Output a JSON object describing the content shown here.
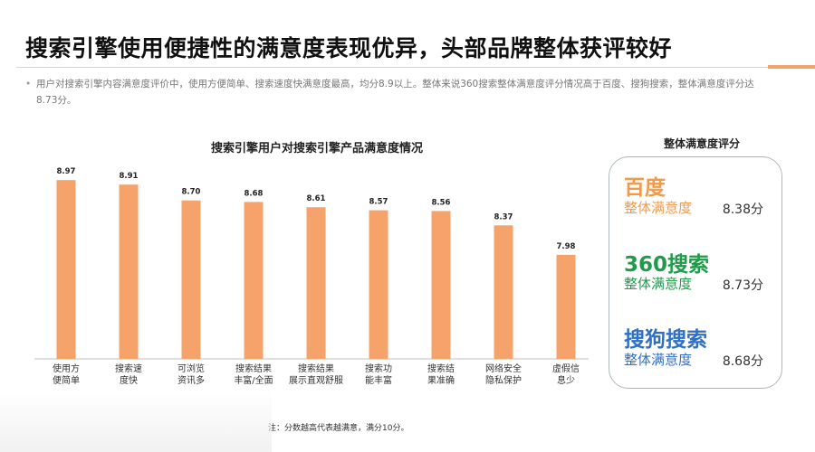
{
  "header": {
    "title": "搜索引擎使用便捷性的满意度表现优异，头部品牌整体获评较好",
    "summary": "用户对搜索引擎内容满意度评价中，使用方便简单、搜索速度快满意度最高，均分8.9以上。整体来说360搜索整体满意度评分情况高于百度、搜狗搜索，整体满意度评分达8.73分。"
  },
  "chart_data": {
    "type": "bar",
    "title": "搜索引擎用户对搜索引擎产品满意度情况",
    "categories": [
      "使用方便简单",
      "搜索速度快",
      "可浏览资讯多",
      "搜索结果丰富/全面",
      "搜索结果展示直观舒服",
      "搜索功能丰富",
      "搜索结果准确",
      "网络安全隐私保护",
      "虚假信息少"
    ],
    "category_lines": [
      [
        "使用方",
        "便简单"
      ],
      [
        "搜索速",
        "度快"
      ],
      [
        "可浏览",
        "资讯多"
      ],
      [
        "搜索结果",
        "丰富/全面"
      ],
      [
        "搜索结果",
        "展示直观舒服"
      ],
      [
        "搜索功",
        "能丰富"
      ],
      [
        "搜索结",
        "果准确"
      ],
      [
        "网络安全",
        "隐私保护"
      ],
      [
        "虚假信",
        "息少"
      ]
    ],
    "values": [
      8.97,
      8.91,
      8.7,
      8.68,
      8.61,
      8.57,
      8.56,
      8.37,
      7.98
    ],
    "value_labels": [
      "8.97",
      "8.91",
      "8.70",
      "8.68",
      "8.61",
      "8.57",
      "8.56",
      "8.37",
      "7.98"
    ],
    "ylim": [
      6.6,
      9.2
    ],
    "bar_color": "#f5a36a",
    "grid": false,
    "note": "注：分数越高代表越满意，满分10分。"
  },
  "panel": {
    "title": "整体满意度评分",
    "brands": [
      {
        "name": "百度",
        "sub": "整体满意度",
        "score": "8.38分",
        "color": "#f29a4a"
      },
      {
        "name": "360搜索",
        "sub": "整体满意度",
        "score": "8.73分",
        "color": "#1f9b4a"
      },
      {
        "name": "搜狗搜索",
        "sub": "整体满意度",
        "score": "8.68分",
        "color": "#2f6fc4"
      }
    ]
  }
}
